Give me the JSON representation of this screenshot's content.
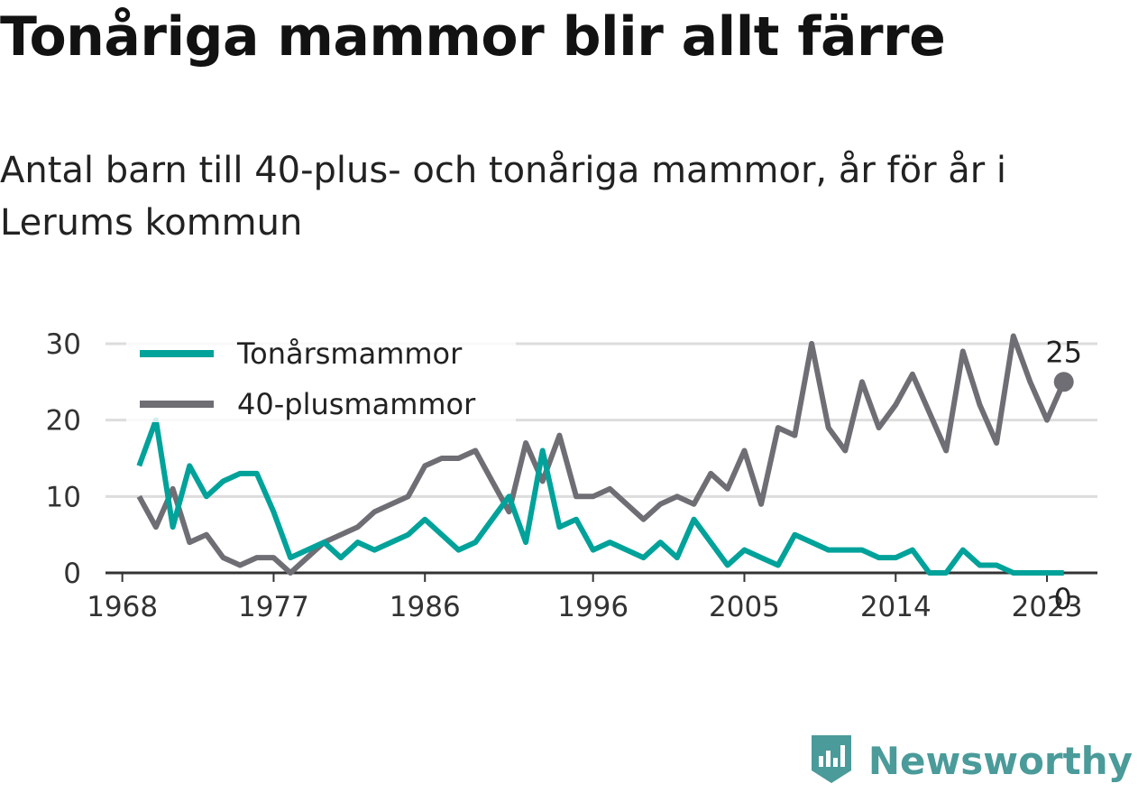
{
  "title": "Tonåriga mammor blir allt färre",
  "subtitle": "Antal barn till 40-plus- och tonåriga mammor, år för år i Lerums kommun",
  "brand": {
    "name": "Newsworthy",
    "icon": "newsworthy-logo-icon"
  },
  "colors": {
    "teen": "#00a29a",
    "plus40": "#6e6e74",
    "grid": "#dddddd",
    "axis": "#333333"
  },
  "chart_data": {
    "type": "line",
    "title": "Tonåriga mammor blir allt färre",
    "subtitle": "Antal barn till 40-plus- och tonåriga mammor, år för år i Lerums kommun",
    "xlabel": "",
    "ylabel": "",
    "x_ticks": [
      "1968",
      "1977",
      "1986",
      "1996",
      "2005",
      "2014",
      "2023"
    ],
    "y_ticks": [
      "0",
      "10",
      "20",
      "30"
    ],
    "ylim": [
      0,
      32
    ],
    "xlim": [
      1967,
      2026
    ],
    "grid": true,
    "legend_position": "top-left",
    "x": [
      1969,
      1970,
      1971,
      1972,
      1973,
      1974,
      1975,
      1976,
      1977,
      1978,
      1979,
      1980,
      1981,
      1982,
      1983,
      1984,
      1985,
      1986,
      1987,
      1988,
      1989,
      1990,
      1991,
      1992,
      1993,
      1994,
      1995,
      1996,
      1997,
      1998,
      1999,
      2000,
      2001,
      2002,
      2003,
      2004,
      2005,
      2006,
      2007,
      2008,
      2009,
      2010,
      2011,
      2012,
      2013,
      2014,
      2015,
      2016,
      2017,
      2018,
      2019,
      2020,
      2021,
      2022,
      2023,
      2024
    ],
    "series": [
      {
        "name": "Tonårsmammor",
        "color": "#00a29a",
        "values": [
          14,
          20,
          6,
          14,
          10,
          12,
          13,
          13,
          8,
          2,
          3,
          4,
          2,
          4,
          3,
          4,
          5,
          7,
          5,
          3,
          4,
          7,
          10,
          4,
          16,
          6,
          7,
          3,
          4,
          3,
          2,
          4,
          2,
          7,
          4,
          1,
          3,
          2,
          1,
          5,
          4,
          3,
          3,
          3,
          2,
          2,
          3,
          0,
          0,
          3,
          1,
          1,
          0,
          0,
          0,
          0
        ],
        "end_label": "0"
      },
      {
        "name": "40-plusmammor",
        "color": "#6e6e74",
        "values": [
          10,
          6,
          11,
          4,
          5,
          2,
          1,
          2,
          2,
          0,
          2,
          4,
          5,
          6,
          8,
          9,
          10,
          14,
          15,
          15,
          16,
          12,
          8,
          17,
          12,
          18,
          10,
          10,
          11,
          9,
          7,
          9,
          10,
          9,
          13,
          11,
          16,
          9,
          19,
          18,
          30,
          19,
          16,
          25,
          19,
          22,
          26,
          21,
          16,
          29,
          22,
          17,
          31,
          25,
          20,
          25
        ],
        "end_label": "25"
      }
    ]
  }
}
